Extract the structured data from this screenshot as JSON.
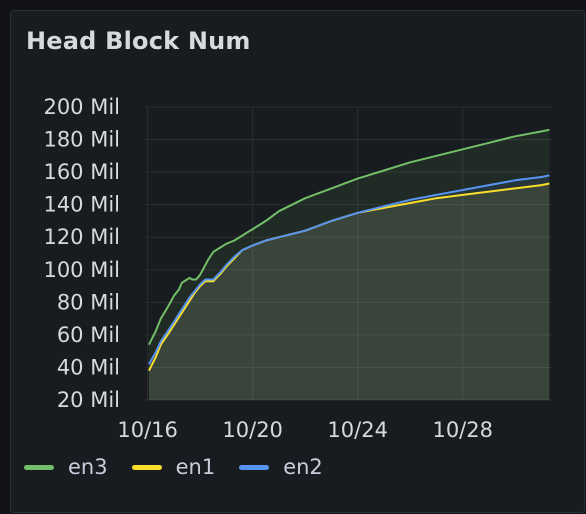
{
  "panel": {
    "title": "Head Block Num"
  },
  "chart_data": {
    "type": "line",
    "title": "Head Block Num",
    "xlabel": "",
    "ylabel": "",
    "x_unit": "days of October",
    "xlim": [
      15.9,
      31.4
    ],
    "ylim": [
      20,
      200
    ],
    "y_ticks": [
      20,
      40,
      60,
      80,
      100,
      120,
      140,
      160,
      180,
      200
    ],
    "y_tick_labels": [
      "20 Mil",
      "40 Mil",
      "60 Mil",
      "80 Mil",
      "100 Mil",
      "120 Mil",
      "140 Mil",
      "160 Mil",
      "180 Mil",
      "200 Mil"
    ],
    "x_ticks": [
      16,
      20,
      24,
      28
    ],
    "x_tick_labels": [
      "10/16",
      "10/20",
      "10/24",
      "10/28"
    ],
    "grid": true,
    "legend_position": "bottom-left",
    "fill_area": true,
    "series": [
      {
        "name": "en3",
        "color": "#73bf69",
        "x": [
          16.05,
          16.3,
          16.5,
          16.8,
          17.0,
          17.2,
          17.3,
          17.5,
          17.6,
          17.7,
          17.85,
          18.0,
          18.1,
          18.3,
          18.5,
          18.8,
          19.0,
          19.3,
          19.6,
          19.8,
          20.0,
          20.5,
          21.0,
          22.0,
          23.0,
          24.0,
          25.0,
          26.0,
          27.0,
          28.0,
          29.0,
          30.0,
          31.0,
          31.3
        ],
        "values": [
          54,
          62,
          70,
          78,
          84,
          88,
          92,
          94,
          95,
          94,
          94,
          97,
          100,
          106,
          111,
          114,
          116,
          118,
          121,
          123,
          125,
          130,
          136,
          144,
          150,
          156,
          161,
          166,
          170,
          174,
          178,
          182,
          185,
          186
        ]
      },
      {
        "name": "en1",
        "color": "#fade2a",
        "x": [
          16.05,
          16.3,
          16.5,
          16.8,
          17.0,
          17.2,
          17.4,
          17.6,
          17.8,
          18.0,
          18.2,
          18.5,
          18.8,
          19.0,
          19.3,
          19.6,
          20.0,
          20.5,
          21.0,
          22.0,
          23.0,
          24.0,
          25.0,
          26.0,
          27.0,
          28.0,
          29.0,
          30.0,
          31.0,
          31.3
        ],
        "values": [
          38,
          46,
          54,
          61,
          66,
          71,
          76,
          81,
          86,
          90,
          93,
          93,
          98,
          102,
          107,
          112,
          115,
          118,
          120,
          124,
          130,
          135,
          138,
          141,
          144,
          146,
          148,
          150,
          152,
          153
        ]
      },
      {
        "name": "en2",
        "color": "#5794f2",
        "x": [
          16.05,
          16.3,
          16.5,
          16.8,
          17.0,
          17.2,
          17.4,
          17.6,
          17.8,
          18.0,
          18.2,
          18.5,
          18.8,
          19.0,
          19.3,
          19.6,
          20.0,
          20.5,
          21.0,
          22.0,
          23.0,
          24.0,
          25.0,
          26.0,
          27.0,
          28.0,
          29.0,
          30.0,
          31.0,
          31.3
        ],
        "values": [
          42,
          49,
          56,
          63,
          68,
          73,
          78,
          83,
          87,
          91,
          94,
          94,
          99,
          103,
          108,
          112,
          115,
          118,
          120,
          124,
          130,
          135,
          139,
          143,
          146,
          149,
          152,
          155,
          157,
          158
        ]
      }
    ]
  }
}
